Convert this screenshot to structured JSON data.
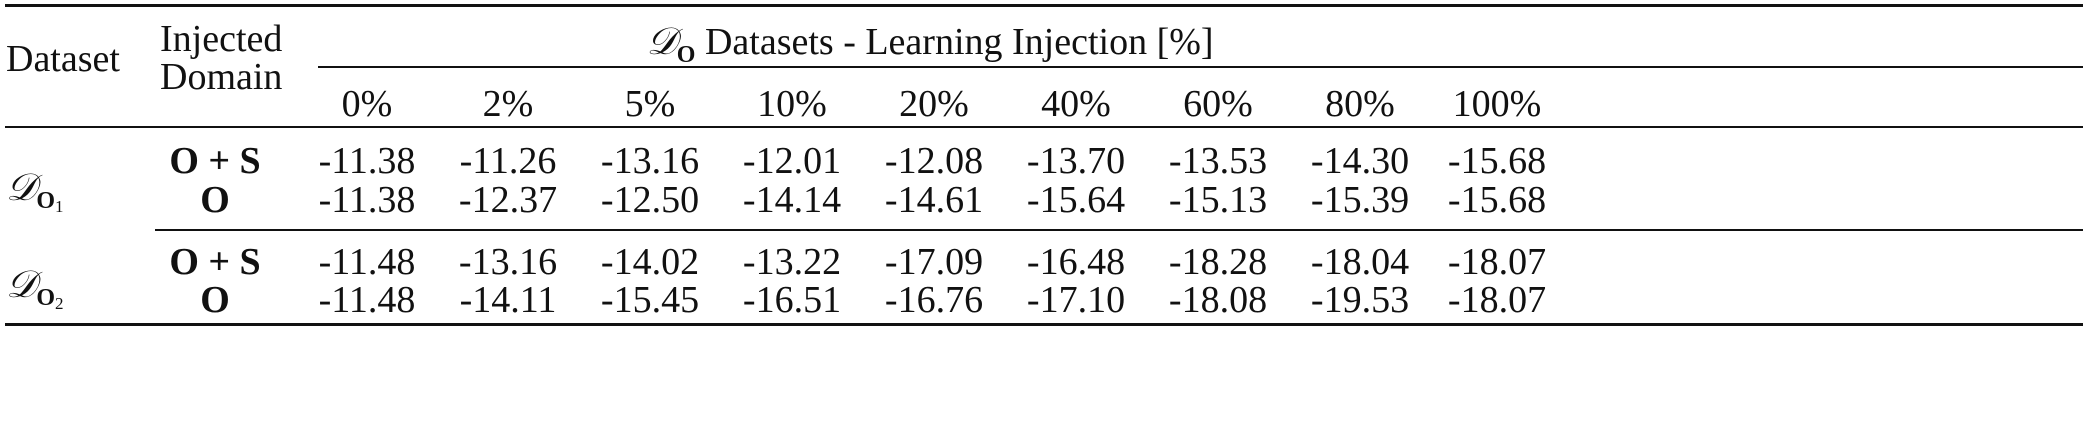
{
  "table": {
    "header": {
      "dataset": "Dataset",
      "injected_line1": "Injected",
      "injected_line2": "Domain",
      "group_prefix": "𝒟",
      "group_sub": "O",
      "group_title": "Datasets - Learning Injection [%]",
      "percentages": [
        "0%",
        "2%",
        "5%",
        "10%",
        "20%",
        "40%",
        "60%",
        "80%",
        "100%"
      ]
    },
    "blocks": [
      {
        "dataset_symbol": "𝒟",
        "dataset_sub": "O",
        "dataset_subsub": "1",
        "rows": [
          {
            "domain": "O + S",
            "values": [
              "-11.38",
              "-11.26",
              "-13.16",
              "-12.01",
              "-12.08",
              "-13.70",
              "-13.53",
              "-14.30",
              "-15.68"
            ]
          },
          {
            "domain": "O",
            "values": [
              "-11.38",
              "-12.37",
              "-12.50",
              "-14.14",
              "-14.61",
              "-15.64",
              "-15.13",
              "-15.39",
              "-15.68"
            ]
          }
        ]
      },
      {
        "dataset_symbol": "𝒟",
        "dataset_sub": "O",
        "dataset_subsub": "2",
        "rows": [
          {
            "domain": "O + S",
            "values": [
              "-11.48",
              "-13.16",
              "-14.02",
              "-13.22",
              "-17.09",
              "-16.48",
              "-18.28",
              "-18.04",
              "-18.07"
            ]
          },
          {
            "domain": "O",
            "values": [
              "-11.48",
              "-14.11",
              "-15.45",
              "-16.51",
              "-16.76",
              "-17.10",
              "-18.08",
              "-19.53",
              "-18.07"
            ]
          }
        ]
      }
    ]
  }
}
